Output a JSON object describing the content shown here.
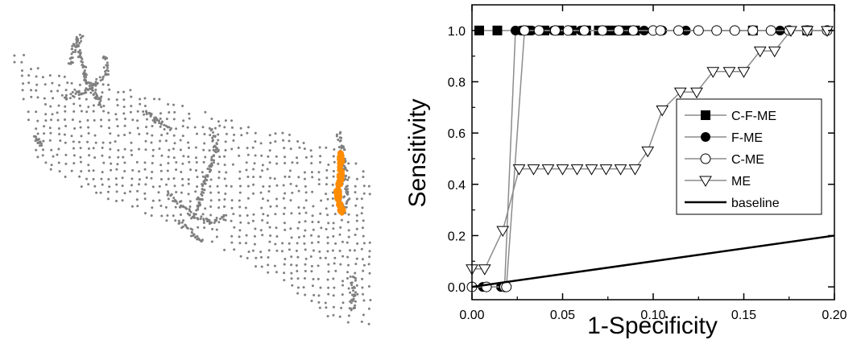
{
  "colors": {
    "point_cloud": "#7f7f7f",
    "highlight": "#ff8c00",
    "axis": "#000000",
    "series_line": "#8c8c8c",
    "baseline": "#000000"
  },
  "point_cloud_panel": {
    "description_icon": "point-cloud-map",
    "highlighted_region_color": "orange"
  },
  "chart_data": {
    "type": "line",
    "title": "",
    "xlabel": "1-Specificity",
    "ylabel": "Sensitivity",
    "xlim": [
      0.0,
      0.2
    ],
    "ylim": [
      -0.05,
      1.1
    ],
    "xticks": [
      "0.00",
      "0.05",
      "0.10",
      "0.15",
      "0.20"
    ],
    "yticks": [
      "0.0",
      "0.2",
      "0.4",
      "0.6",
      "0.8",
      "1.0"
    ],
    "grid": false,
    "legend_position": "center-right",
    "series": [
      {
        "name": "C-F-ME",
        "marker": "filled-square",
        "x": [
          0.004,
          0.014,
          0.03,
          0.04,
          0.048,
          0.055,
          0.063,
          0.07,
          0.075,
          0.08,
          0.085,
          0.09,
          0.155,
          0.185
        ],
        "y": [
          1.0,
          1.0,
          1.0,
          1.0,
          1.0,
          1.0,
          1.0,
          1.0,
          1.0,
          1.0,
          1.0,
          1.0,
          1.0,
          1.0
        ]
      },
      {
        "name": "F-ME",
        "marker": "filled-circle",
        "x": [
          0.0,
          0.006,
          0.016,
          0.018,
          0.024,
          0.027,
          0.033,
          0.045,
          0.06,
          0.072,
          0.083,
          0.095,
          0.105,
          0.118,
          0.135,
          0.155,
          0.17,
          0.185,
          0.196
        ],
        "y": [
          0.0,
          0.0,
          0.0,
          0.0,
          1.0,
          1.0,
          1.0,
          1.0,
          1.0,
          1.0,
          1.0,
          1.0,
          1.0,
          1.0,
          1.0,
          1.0,
          1.0,
          1.0,
          1.0
        ]
      },
      {
        "name": "C-ME",
        "marker": "open-circle",
        "x": [
          0.0,
          0.008,
          0.018,
          0.019,
          0.029,
          0.037,
          0.046,
          0.053,
          0.062,
          0.072,
          0.081,
          0.089,
          0.1,
          0.104,
          0.114,
          0.125,
          0.135,
          0.145,
          0.155,
          0.165,
          0.175,
          0.185,
          0.196
        ],
        "y": [
          0.0,
          0.0,
          0.0,
          0.0,
          1.0,
          1.0,
          1.0,
          1.0,
          1.0,
          1.0,
          1.0,
          1.0,
          1.0,
          1.0,
          1.0,
          1.0,
          1.0,
          1.0,
          1.0,
          1.0,
          1.0,
          1.0,
          1.0
        ]
      },
      {
        "name": "ME",
        "marker": "open-triangle-down",
        "x": [
          0.0,
          0.007,
          0.017,
          0.026,
          0.034,
          0.042,
          0.05,
          0.058,
          0.066,
          0.074,
          0.082,
          0.09,
          0.097,
          0.105,
          0.115,
          0.124,
          0.133,
          0.142,
          0.15,
          0.159,
          0.167,
          0.176,
          0.185,
          0.196
        ],
        "y": [
          0.07,
          0.07,
          0.22,
          0.46,
          0.46,
          0.46,
          0.46,
          0.46,
          0.46,
          0.46,
          0.46,
          0.46,
          0.53,
          0.69,
          0.76,
          0.76,
          0.84,
          0.84,
          0.84,
          0.92,
          0.92,
          1.0,
          1.0,
          1.0
        ]
      },
      {
        "name": "baseline",
        "marker": "none",
        "x": [
          0.0,
          0.2
        ],
        "y": [
          0.0,
          0.2
        ]
      }
    ]
  }
}
